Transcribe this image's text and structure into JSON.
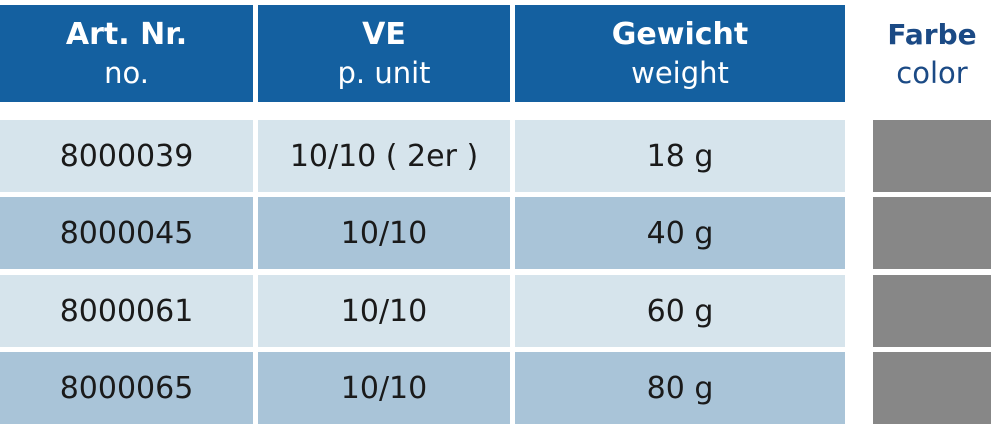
{
  "table": {
    "header": [
      {
        "title": "Art. Nr.",
        "subtitle": "no."
      },
      {
        "title": "VE",
        "subtitle": "p. unit"
      },
      {
        "title": "Gewicht",
        "subtitle": "weight"
      },
      {
        "title": "Farbe",
        "subtitle": "color"
      }
    ],
    "rows": [
      {
        "cells": [
          "8000039",
          "10/10 ( 2er )",
          "18 g"
        ],
        "color": "#878787"
      },
      {
        "cells": [
          "8000045",
          "10/10",
          "40 g"
        ],
        "color": "#878787"
      },
      {
        "cells": [
          "8000061",
          "10/10",
          "60 g"
        ],
        "color": "#878787"
      },
      {
        "cells": [
          "8000065",
          "10/10",
          "80 g"
        ],
        "color": "#878787"
      }
    ]
  }
}
